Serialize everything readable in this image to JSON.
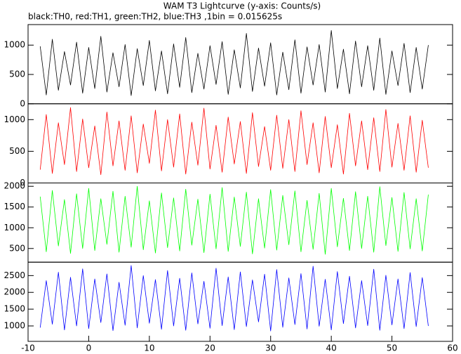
{
  "chart_data": [
    {
      "type": "line",
      "title": "WAM T3 Lightcurve (y-axis: Counts/s)",
      "subtitle": "black:TH0, red:TH1, green:TH2, blue:TH3 ,1bin = 0.015625s",
      "xlim": [
        -10,
        60
      ],
      "ylim": [
        0,
        1350
      ],
      "yticks": [
        0,
        500,
        1000
      ],
      "x": [
        -8,
        -7,
        -6,
        -5,
        -4,
        -3,
        -2,
        -1,
        0,
        1,
        2,
        3,
        4,
        5,
        6,
        7,
        8,
        9,
        10,
        11,
        12,
        13,
        14,
        15,
        16,
        17,
        18,
        19,
        20,
        21,
        22,
        23,
        24,
        25,
        26,
        27,
        28,
        29,
        30,
        31,
        32,
        33,
        34,
        35,
        36,
        37,
        38,
        39,
        40,
        41,
        42,
        43,
        44,
        45,
        46,
        47,
        48,
        49,
        50,
        51,
        52,
        53,
        54,
        55,
        56
      ],
      "series": [
        {
          "color": "#000000",
          "values": [
            980,
            150,
            1100,
            230,
            890,
            320,
            1050,
            180,
            960,
            260,
            1150,
            200,
            870,
            290,
            1010,
            140,
            940,
            310,
            1080,
            220,
            900,
            170,
            1020,
            280,
            1130,
            190,
            860,
            250,
            990,
            330,
            1060,
            160,
            920,
            270,
            1200,
            210,
            950,
            300,
            1040,
            150,
            880,
            240,
            1090,
            180,
            970,
            320,
            1010,
            200,
            1250,
            260,
            930,
            170,
            1070,
            290,
            990,
            230,
            1120,
            160,
            900,
            310,
            1030,
            190,
            960,
            250,
            1000
          ]
        }
      ]
    },
    {
      "type": "line",
      "xlim": [
        -10,
        60
      ],
      "ylim": [
        0,
        1250
      ],
      "yticks": [
        0,
        500,
        1000
      ],
      "x": [
        -8,
        -7,
        -6,
        -5,
        -4,
        -3,
        -2,
        -1,
        0,
        1,
        2,
        3,
        4,
        5,
        6,
        7,
        8,
        9,
        10,
        11,
        12,
        13,
        14,
        15,
        16,
        17,
        18,
        19,
        20,
        21,
        22,
        23,
        24,
        25,
        26,
        27,
        28,
        29,
        30,
        31,
        32,
        33,
        34,
        35,
        36,
        37,
        38,
        39,
        40,
        41,
        42,
        43,
        44,
        45,
        46,
        47,
        48,
        49,
        50,
        51,
        52,
        53,
        54,
        55,
        56
      ],
      "series": [
        {
          "color": "#ff0000",
          "values": [
            210,
            1080,
            150,
            950,
            290,
            1190,
            180,
            1010,
            240,
            900,
            130,
            1120,
            270,
            980,
            200,
            1060,
            160,
            930,
            310,
            1150,
            190,
            1000,
            250,
            1090,
            140,
            960,
            280,
            1180,
            220,
            910,
            170,
            1040,
            300,
            970,
            150,
            1110,
            260,
            890,
            200,
            1070,
            230,
            1000,
            180,
            1140,
            290,
            950,
            160,
            1050,
            240,
            920,
            140,
            1100,
            270,
            980,
            210,
            1030,
            180,
            1160,
            250,
            940,
            200,
            1060,
            170,
            990,
            240
          ]
        }
      ]
    },
    {
      "type": "line",
      "xlim": [
        -10,
        60
      ],
      "ylim": [
        170,
        2080
      ],
      "yticks": [
        500,
        1000,
        1500,
        2000
      ],
      "x": [
        -8,
        -7,
        -6,
        -5,
        -4,
        -3,
        -2,
        -1,
        0,
        1,
        2,
        3,
        4,
        5,
        6,
        7,
        8,
        9,
        10,
        11,
        12,
        13,
        14,
        15,
        16,
        17,
        18,
        19,
        20,
        21,
        22,
        23,
        24,
        25,
        26,
        27,
        28,
        29,
        30,
        31,
        32,
        33,
        34,
        35,
        36,
        37,
        38,
        39,
        40,
        41,
        42,
        43,
        44,
        45,
        46,
        47,
        48,
        49,
        50,
        51,
        52,
        53,
        54,
        55,
        56
      ],
      "series": [
        {
          "color": "#00ff00",
          "values": [
            1750,
            420,
            1900,
            560,
            1680,
            380,
            1820,
            500,
            1950,
            450,
            1700,
            600,
            1880,
            410,
            1760,
            530,
            2000,
            470,
            1650,
            390,
            1840,
            520,
            1720,
            440,
            1930,
            580,
            1690,
            400,
            1810,
            490,
            1970,
            430,
            1740,
            550,
            1860,
            370,
            1700,
            510,
            1920,
            460,
            1780,
            590,
            1890,
            420,
            1660,
            480,
            1830,
            360,
            1950,
            540,
            1710,
            450,
            1870,
            500,
            1760,
            410,
            1990,
            570,
            1730,
            430,
            1850,
            490,
            1700,
            440,
            1800
          ]
        }
      ]
    },
    {
      "type": "line",
      "xlim": [
        -10,
        60
      ],
      "ylim": [
        540,
        2900
      ],
      "yticks": [
        1000,
        1500,
        2000,
        2500
      ],
      "xticks": [
        -10,
        0,
        10,
        20,
        30,
        40,
        50,
        60
      ],
      "x": [
        -8,
        -7,
        -6,
        -5,
        -4,
        -3,
        -2,
        -1,
        0,
        1,
        2,
        3,
        4,
        5,
        6,
        7,
        8,
        9,
        10,
        11,
        12,
        13,
        14,
        15,
        16,
        17,
        18,
        19,
        20,
        21,
        22,
        23,
        24,
        25,
        26,
        27,
        28,
        29,
        30,
        31,
        32,
        33,
        34,
        35,
        36,
        37,
        38,
        39,
        40,
        41,
        42,
        43,
        44,
        45,
        46,
        47,
        48,
        49,
        50,
        51,
        52,
        53,
        54,
        55,
        56
      ],
      "series": [
        {
          "color": "#0000ff",
          "values": [
            950,
            2350,
            1050,
            2600,
            880,
            2450,
            1000,
            2700,
            920,
            2400,
            1100,
            2550,
            860,
            2300,
            1020,
            2800,
            940,
            2500,
            1080,
            2380,
            900,
            2650,
            1000,
            2420,
            870,
            2580,
            1060,
            2330,
            930,
            2720,
            1010,
            2460,
            890,
            2610,
            980,
            2370,
            1120,
            2540,
            850,
            2680,
            960,
            2430,
            1040,
            2560,
            910,
            2780,
            990,
            2390,
            880,
            2620,
            1070,
            2480,
            940,
            2350,
            1010,
            2690,
            870,
            2510,
            1030,
            2400,
            920,
            2590,
            980,
            2440,
            1000
          ]
        }
      ]
    }
  ]
}
